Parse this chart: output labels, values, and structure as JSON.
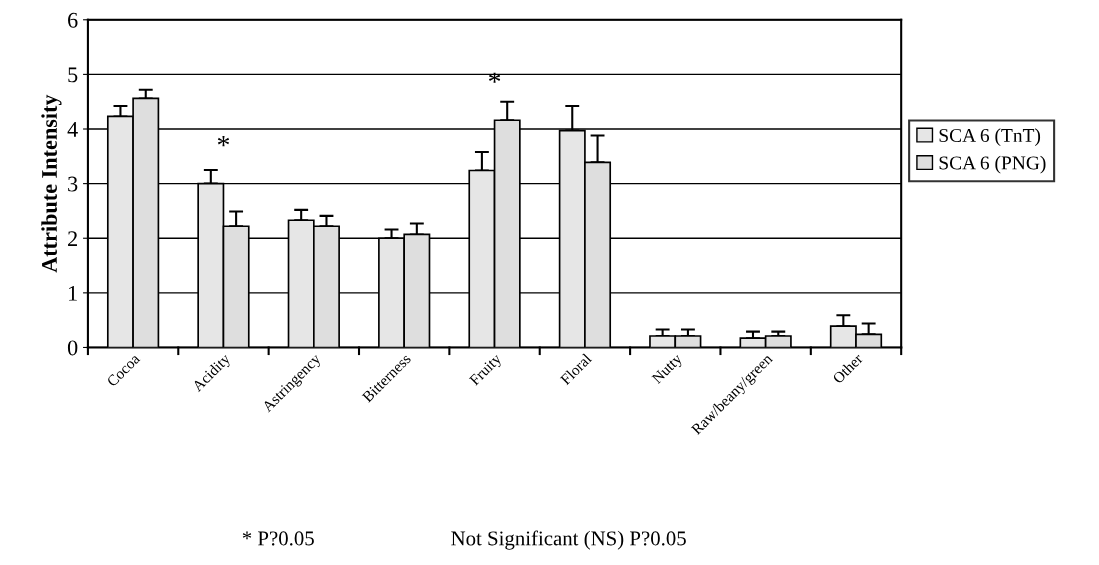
{
  "chart_data": {
    "type": "bar",
    "ylabel": "Attribute Intensity",
    "categories": [
      "Cocoa",
      "Acidity",
      "Astringency",
      "Bitterness",
      "Fruity",
      "Floral",
      "Nutty",
      "Raw/beany/green",
      "Other"
    ],
    "series": [
      {
        "name": "SCA 6 (TnT)",
        "color": "#e6e6e6",
        "values": [
          4.23,
          3.0,
          2.33,
          2.0,
          3.24,
          3.97,
          0.21,
          0.17,
          0.39
        ],
        "errors": [
          [
            4.23,
            4.42
          ],
          [
            3.0,
            3.25
          ],
          [
            2.33,
            2.52
          ],
          [
            2.0,
            2.16
          ],
          [
            3.24,
            3.58
          ],
          [
            3.97,
            4.42
          ],
          [
            0.21,
            0.33
          ],
          [
            0.17,
            0.29
          ],
          [
            0.39,
            0.59
          ]
        ]
      },
      {
        "name": "SCA 6 (PNG)",
        "color": "#dedede",
        "values": [
          4.56,
          2.22,
          2.22,
          2.07,
          4.16,
          3.39,
          0.21,
          0.21,
          0.24
        ],
        "errors": [
          [
            4.56,
            4.72
          ],
          [
            2.22,
            2.49
          ],
          [
            2.22,
            2.41
          ],
          [
            2.07,
            2.27
          ],
          [
            4.16,
            4.5
          ],
          [
            3.39,
            3.88
          ],
          [
            0.21,
            0.33
          ],
          [
            0.21,
            0.29
          ],
          [
            0.24,
            0.44
          ]
        ]
      }
    ],
    "ylim": [
      0,
      6
    ],
    "yticks": [
      0,
      1,
      2,
      3,
      4,
      5,
      6
    ],
    "grid": "y",
    "legend": "right",
    "annotations": [
      {
        "text": "*",
        "x": "Acidity",
        "y": 3.0
      },
      {
        "text": "*",
        "x": "Fruity",
        "y": 4.16
      },
      "* P?0.05",
      "Not Significant (NS) P?0.05"
    ]
  }
}
